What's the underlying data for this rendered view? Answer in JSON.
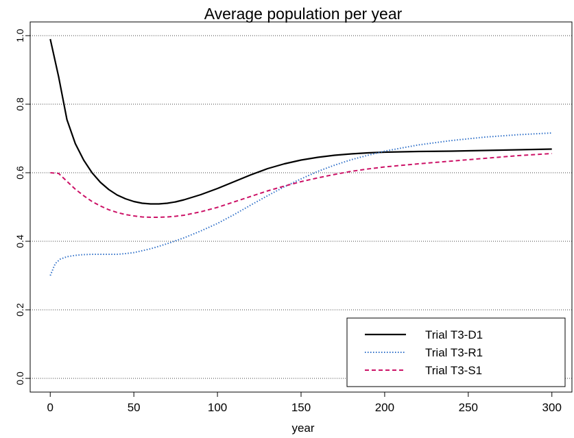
{
  "chart_data": {
    "type": "line",
    "title": "Average population per year",
    "xlabel": "year",
    "ylabel": "",
    "xlim": [
      -12,
      312
    ],
    "ylim": [
      -0.04,
      1.04
    ],
    "x_ticks": [
      0,
      50,
      100,
      150,
      200,
      250,
      300
    ],
    "x_tick_labels": [
      "0",
      "50",
      "100",
      "150",
      "200",
      "250",
      "300"
    ],
    "y_ticks": [
      0.0,
      0.2,
      0.4,
      0.6,
      0.8,
      1.0
    ],
    "y_tick_labels": [
      "0.0",
      "0.2",
      "0.4",
      "0.6",
      "0.8",
      "1.0"
    ],
    "grid": "horizontal dotted",
    "legend_position": "bottom-right",
    "series": [
      {
        "name": "Trial T3-D1",
        "color": "#000000",
        "style": "solid",
        "x": [
          0,
          5,
          10,
          15,
          20,
          25,
          30,
          35,
          40,
          45,
          50,
          55,
          60,
          65,
          70,
          75,
          80,
          90,
          100,
          110,
          120,
          130,
          140,
          150,
          160,
          170,
          180,
          190,
          200,
          220,
          240,
          260,
          280,
          300
        ],
        "y": [
          0.99,
          0.88,
          0.755,
          0.685,
          0.637,
          0.6,
          0.572,
          0.551,
          0.535,
          0.524,
          0.516,
          0.511,
          0.509,
          0.509,
          0.511,
          0.515,
          0.521,
          0.536,
          0.554,
          0.574,
          0.594,
          0.612,
          0.626,
          0.637,
          0.645,
          0.651,
          0.655,
          0.658,
          0.66,
          0.662,
          0.663,
          0.665,
          0.667,
          0.669
        ]
      },
      {
        "name": "Trial T3-R1",
        "color": "#2e6fc8",
        "style": "dotted",
        "x": [
          0,
          3,
          6,
          10,
          15,
          20,
          25,
          30,
          35,
          40,
          45,
          50,
          60,
          70,
          80,
          90,
          100,
          110,
          120,
          130,
          140,
          150,
          160,
          170,
          180,
          190,
          200,
          220,
          240,
          260,
          280,
          300
        ],
        "y": [
          0.3,
          0.335,
          0.348,
          0.355,
          0.359,
          0.361,
          0.362,
          0.362,
          0.362,
          0.362,
          0.364,
          0.367,
          0.378,
          0.393,
          0.41,
          0.43,
          0.452,
          0.478,
          0.506,
          0.533,
          0.559,
          0.582,
          0.604,
          0.622,
          0.638,
          0.651,
          0.663,
          0.681,
          0.694,
          0.704,
          0.711,
          0.716
        ]
      },
      {
        "name": "Trial T3-S1",
        "color": "#cc1166",
        "style": "dashed",
        "x": [
          0,
          5,
          10,
          15,
          20,
          25,
          30,
          35,
          40,
          45,
          50,
          55,
          60,
          65,
          70,
          75,
          80,
          90,
          100,
          110,
          120,
          130,
          140,
          150,
          160,
          170,
          180,
          190,
          200,
          220,
          240,
          260,
          280,
          300
        ],
        "y": [
          0.6,
          0.598,
          0.575,
          0.552,
          0.533,
          0.516,
          0.503,
          0.492,
          0.484,
          0.478,
          0.474,
          0.471,
          0.47,
          0.47,
          0.471,
          0.473,
          0.476,
          0.486,
          0.499,
          0.515,
          0.531,
          0.547,
          0.561,
          0.574,
          0.585,
          0.595,
          0.604,
          0.611,
          0.617,
          0.626,
          0.634,
          0.642,
          0.65,
          0.656
        ]
      }
    ]
  }
}
